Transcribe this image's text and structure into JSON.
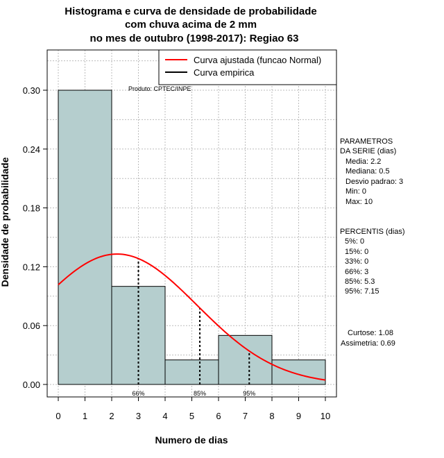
{
  "chart_data": {
    "type": "bar",
    "title_lines": [
      "Histograma e curva de densidade de probabilidade",
      "com chuva acima de 2 mm",
      "no mes de outubro (1998-2017): Regiao 63"
    ],
    "xlabel": "Numero de dias",
    "ylabel": "Densidade de probabilidade",
    "xlim": [
      -0.5,
      10.5
    ],
    "ylim": [
      0,
      0.33
    ],
    "x_ticks": [
      0,
      1,
      2,
      3,
      4,
      5,
      6,
      7,
      8,
      9,
      10
    ],
    "x_tick_labels": [
      "0",
      "1",
      "2",
      "3",
      "4",
      "5",
      "6",
      "7",
      "8",
      "9",
      "10"
    ],
    "y_ticks": [
      0.0,
      0.06,
      0.12,
      0.18,
      0.24,
      0.3
    ],
    "y_tick_labels": [
      "0.00",
      "0.06",
      "0.12",
      "0.18",
      "0.24",
      "0.30"
    ],
    "bins": [
      {
        "x0": 0,
        "x1": 2,
        "density": 0.3
      },
      {
        "x0": 2,
        "x1": 4,
        "density": 0.1
      },
      {
        "x0": 4,
        "x1": 6,
        "density": 0.025
      },
      {
        "x0": 6,
        "x1": 8,
        "density": 0.05
      },
      {
        "x0": 8,
        "x1": 10,
        "density": 0.025
      }
    ],
    "fitted_curve": {
      "name": "Curva ajustada (funcao Normal)",
      "color": "#ff0000",
      "mean": 2.2,
      "sd": 3.0,
      "x_range": [
        0,
        10
      ]
    },
    "empirical_curve": {
      "name": "Curva empirica",
      "color": "#000000"
    },
    "percentile_lines": [
      {
        "x": 3.0,
        "label": "66%"
      },
      {
        "x": 5.3,
        "label": "85%"
      },
      {
        "x": 7.15,
        "label": "95%"
      }
    ],
    "grid": true,
    "legend_position": "top-right",
    "bar_color": "#b5cece",
    "annotation": "Produto: CPTEC/INPE",
    "parameters": {
      "header": [
        "PARAMETROS",
        "DA SERIE (dias)"
      ],
      "lines": [
        "Media: 2.2",
        "Mediana: 0.5",
        "Desvio padrao: 3",
        "Min: 0",
        "Max: 10"
      ]
    },
    "percentis": {
      "header": "PERCENTIS (dias)",
      "lines": [
        "5%: 0",
        "15%: 0",
        "33%: 0",
        "66%: 3",
        "85%: 5.3",
        "95%: 7.15"
      ]
    },
    "shape_stats": [
      "Curtose: 1.08",
      "Assimetria: 0.69"
    ]
  }
}
